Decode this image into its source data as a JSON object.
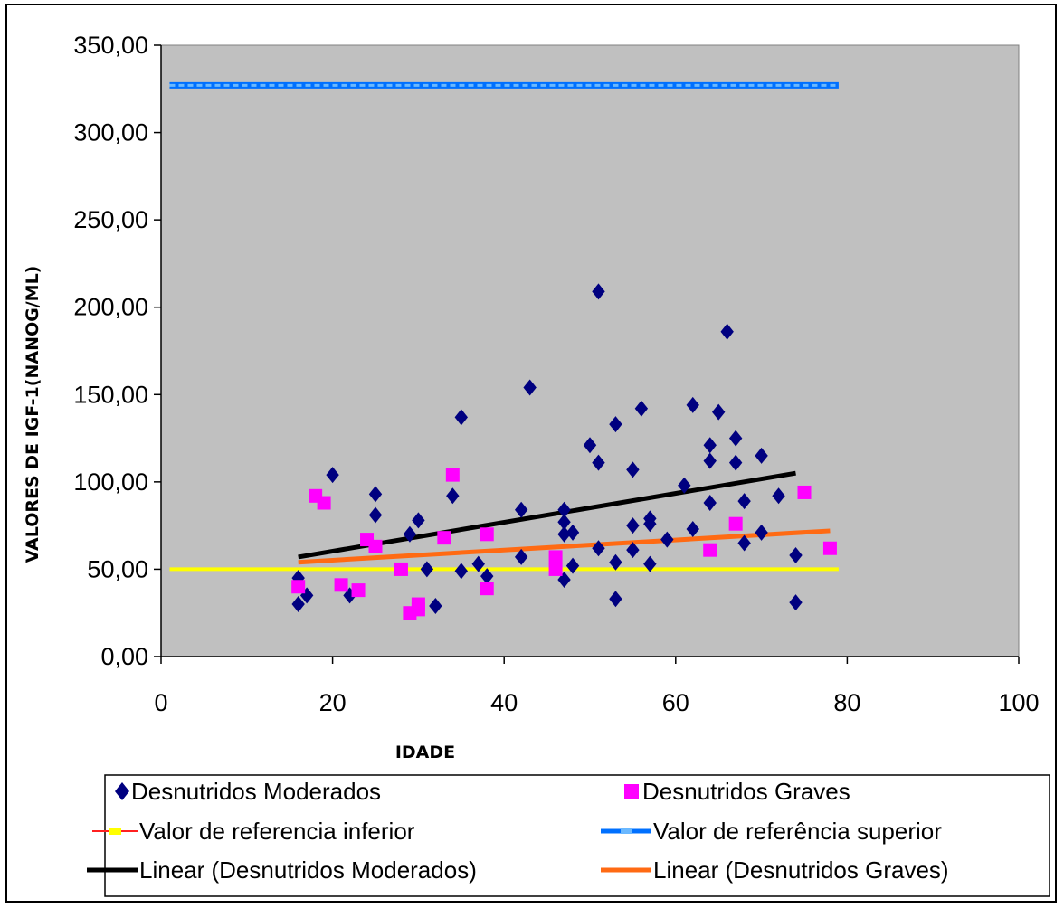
{
  "chart_data": {
    "type": "scatter",
    "xlabel": "IDADE",
    "ylabel": "VALORES DE IGF-1(NANOG/ML)",
    "xlim": [
      0,
      100
    ],
    "ylim": [
      0,
      350
    ],
    "x_ticks": [
      "0",
      "20",
      "40",
      "60",
      "80",
      "100"
    ],
    "y_ticks": [
      "0,00",
      "50,00",
      "100,00",
      "150,00",
      "200,00",
      "250,00",
      "300,00",
      "350,00"
    ],
    "grid": false,
    "plot_background": "#c0c0c0",
    "legend_position": "bottom",
    "series": [
      {
        "name": "Desnutridos Moderados",
        "marker": "diamond",
        "color": "#000080",
        "points": [
          [
            16,
            30
          ],
          [
            16,
            45
          ],
          [
            17,
            35
          ],
          [
            20,
            104
          ],
          [
            22,
            35
          ],
          [
            25,
            81
          ],
          [
            25,
            93
          ],
          [
            29,
            70
          ],
          [
            30,
            78
          ],
          [
            31,
            50
          ],
          [
            32,
            29
          ],
          [
            34,
            92
          ],
          [
            35,
            49
          ],
          [
            35,
            137
          ],
          [
            37,
            53
          ],
          [
            38,
            46
          ],
          [
            42,
            57
          ],
          [
            42,
            84
          ],
          [
            43,
            154
          ],
          [
            47,
            44
          ],
          [
            47,
            70
          ],
          [
            47,
            77
          ],
          [
            47,
            84
          ],
          [
            48,
            52
          ],
          [
            48,
            71
          ],
          [
            50,
            121
          ],
          [
            51,
            62
          ],
          [
            51,
            111
          ],
          [
            51,
            209
          ],
          [
            53,
            33
          ],
          [
            53,
            54
          ],
          [
            53,
            133
          ],
          [
            55,
            61
          ],
          [
            55,
            75
          ],
          [
            55,
            107
          ],
          [
            56,
            142
          ],
          [
            57,
            53
          ],
          [
            57,
            76
          ],
          [
            57,
            79
          ],
          [
            59,
            67
          ],
          [
            61,
            98
          ],
          [
            62,
            73
          ],
          [
            62,
            144
          ],
          [
            64,
            88
          ],
          [
            64,
            112
          ],
          [
            64,
            121
          ],
          [
            65,
            140
          ],
          [
            66,
            186
          ],
          [
            67,
            111
          ],
          [
            67,
            125
          ],
          [
            68,
            65
          ],
          [
            68,
            89
          ],
          [
            70,
            71
          ],
          [
            70,
            115
          ],
          [
            72,
            92
          ],
          [
            74,
            31
          ],
          [
            74,
            58
          ]
        ]
      },
      {
        "name": "Desnutridos Graves",
        "marker": "square",
        "color": "#ff00ff",
        "points": [
          [
            16,
            40
          ],
          [
            18,
            92
          ],
          [
            19,
            88
          ],
          [
            21,
            41
          ],
          [
            23,
            38
          ],
          [
            24,
            67
          ],
          [
            25,
            63
          ],
          [
            28,
            50
          ],
          [
            29,
            25
          ],
          [
            30,
            27
          ],
          [
            30,
            30
          ],
          [
            33,
            68
          ],
          [
            34,
            104
          ],
          [
            38,
            39
          ],
          [
            38,
            70
          ],
          [
            46,
            50
          ],
          [
            46,
            57
          ],
          [
            64,
            61
          ],
          [
            67,
            76
          ],
          [
            75,
            94
          ],
          [
            78,
            62
          ]
        ]
      },
      {
        "name": "Valor de referencia inferior",
        "type": "line",
        "color": "#ffff00",
        "x": [
          1,
          79
        ],
        "y": [
          50,
          50
        ]
      },
      {
        "name": "Valor de referência superior",
        "type": "line",
        "color": "#0070ff",
        "x": [
          1,
          79
        ],
        "y": [
          327,
          327
        ]
      },
      {
        "name": "Linear (Desnutridos Moderados)",
        "type": "trendline",
        "color": "#000000",
        "x": [
          16,
          74
        ],
        "y": [
          57,
          105
        ]
      },
      {
        "name": "Linear (Desnutridos Graves)",
        "type": "trendline",
        "color": "#ff6a13",
        "x": [
          16,
          78
        ],
        "y": [
          54,
          72
        ]
      }
    ]
  }
}
